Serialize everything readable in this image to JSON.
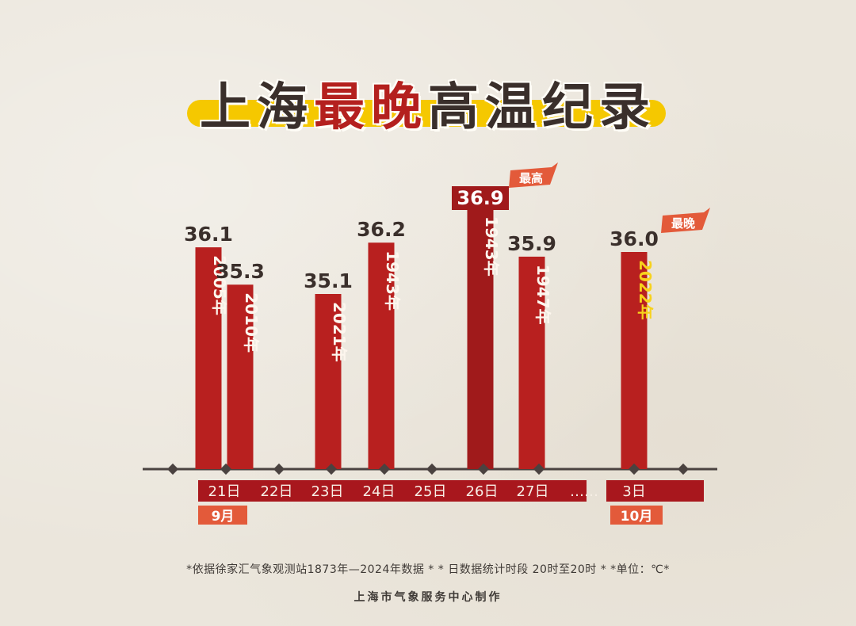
{
  "title": {
    "part1": "上海",
    "part2": "最晚",
    "part3": "高温纪录"
  },
  "chart_data": {
    "type": "bar",
    "ylabel": "",
    "unit": "℃",
    "axis_labels": [
      "21日",
      "22日",
      "23日",
      "24日",
      "25日",
      "26日",
      "27日",
      "……",
      "3日"
    ],
    "month_labels": [
      "9月",
      "10月"
    ],
    "bars": [
      {
        "date": "21日",
        "year": "2005年",
        "value": 36.1
      },
      {
        "date": "21日",
        "year": "2010年",
        "value": 35.3
      },
      {
        "date": "23日",
        "year": "2021年",
        "value": 35.1
      },
      {
        "date": "24日",
        "year": "1943年",
        "value": 36.2
      },
      {
        "date": "26日",
        "year": "1943年",
        "value": 36.9,
        "tag": "最高"
      },
      {
        "date": "27日",
        "year": "1947年",
        "value": 35.9
      },
      {
        "date": "3日",
        "year": "2022年",
        "value": 36.0,
        "tag": "最晚"
      }
    ],
    "colors": {
      "bar": "#b8201f",
      "bar_highlight": "#a01a1b",
      "axis": "#4a4240",
      "date_band": "#a8171d",
      "tag": "#e35a3a",
      "highlight_year": "#f7d21c"
    }
  },
  "footnote": "*依据徐家汇气象观测站1873年—2024年数据 * * 日数据统计时段 20时至20时 * *单位：℃*",
  "credit": "上海市气象服务中心制作"
}
